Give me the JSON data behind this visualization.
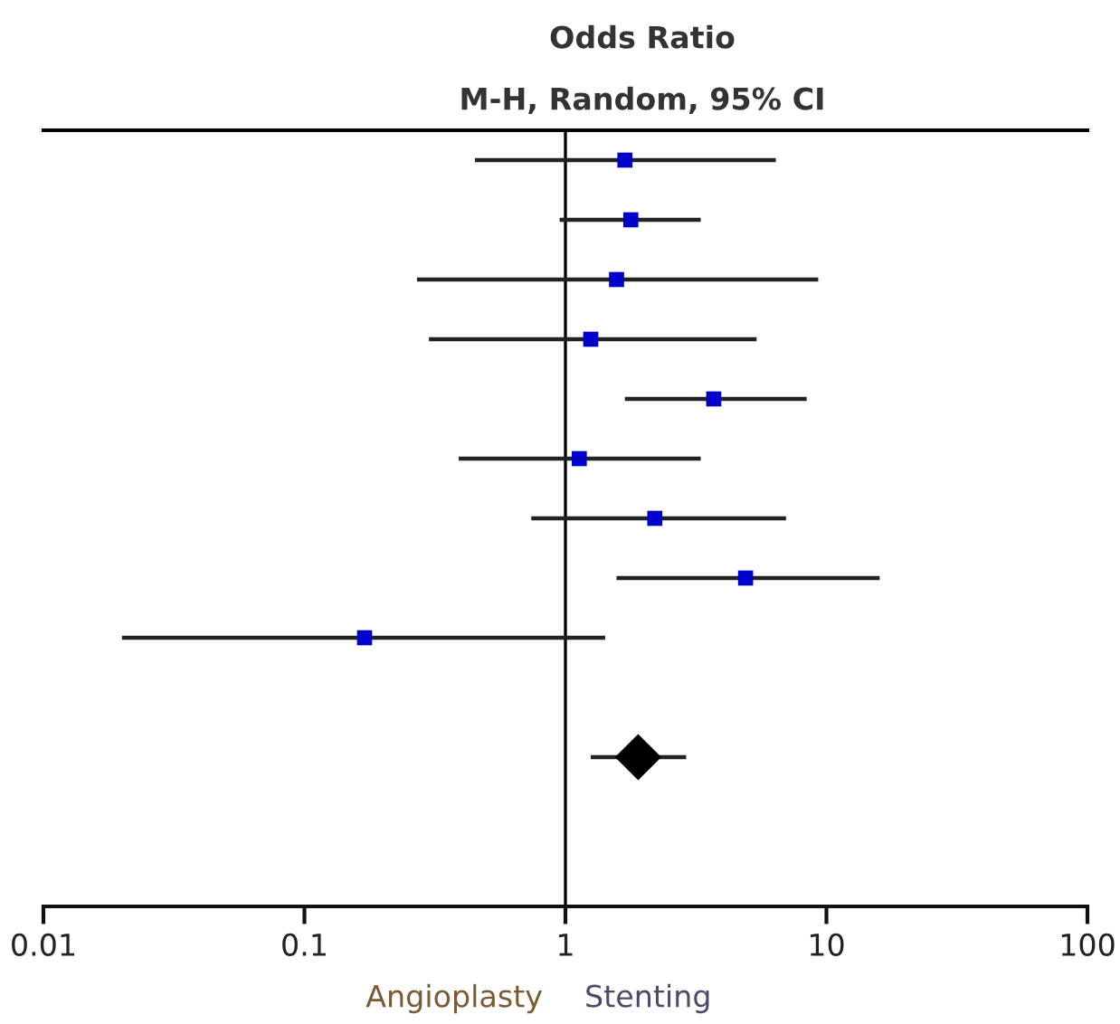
{
  "chart_data": {
    "type": "scatter",
    "orientation": "horizontal",
    "title": "Odds Ratio",
    "subtitle": "M-H, Random, 95% CI",
    "categories": [
      null,
      null,
      null,
      null,
      null,
      null,
      null,
      null,
      null,
      null,
      null,
      null,
      null
    ],
    "series": [
      {
        "marker": "square",
        "color": "#0000cc",
        "values": [
          1.69,
          1.78,
          1.57,
          1.25,
          3.7,
          1.13,
          2.2,
          4.9,
          0.17,
          null,
          null,
          null,
          null
        ],
        "errors": [
          [
            0.45,
            6.4
          ],
          [
            0.95,
            3.3
          ],
          [
            0.27,
            9.3
          ],
          [
            0.3,
            5.4
          ],
          [
            1.69,
            8.4
          ],
          [
            0.39,
            3.3
          ],
          [
            0.74,
            7.0
          ],
          [
            1.57,
            16
          ],
          [
            0.02,
            1.42
          ],
          null,
          null,
          null,
          null
        ]
      },
      {
        "marker": "diamond",
        "color": "#000000",
        "values": [
          null,
          null,
          null,
          null,
          null,
          null,
          null,
          null,
          null,
          null,
          1.9,
          null,
          null
        ],
        "errors": [
          null,
          null,
          null,
          null,
          null,
          null,
          null,
          null,
          null,
          null,
          [
            1.25,
            2.9
          ],
          null,
          null
        ]
      }
    ],
    "log": "x",
    "xlim": [
      0.01,
      100
    ],
    "xticks": [
      0.01,
      0.1,
      1,
      10,
      100
    ],
    "ref_lines": [
      {
        "axis": "x",
        "value": 1,
        "color": "#000000"
      }
    ],
    "annotations": [
      "Angioplasty",
      "Stenting"
    ],
    "tick_labels": "x",
    "grid": false
  }
}
